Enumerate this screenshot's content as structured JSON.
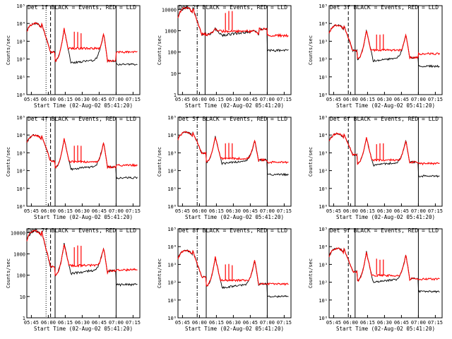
{
  "chart_data": [
    {
      "type": "line",
      "title": "Det 1f BLACK = Events, RED = LLD",
      "xlabel": "Start Time (02-Aug-02 05:41:20)",
      "ylabel": "Counts/sec",
      "x_ticks": [
        "05:45",
        "06:00",
        "06:15",
        "06:30",
        "06:45",
        "07:00",
        "07:15"
      ],
      "y_ticks": [
        "10⁰",
        "10¹",
        "10²",
        "10³",
        "10⁴",
        "10⁵"
      ],
      "ylog": true,
      "ylim": [
        1,
        100000
      ],
      "series": [
        {
          "name": "Events",
          "color": "#000000"
        },
        {
          "name": "LLD",
          "color": "#ff0000"
        }
      ],
      "peak_level": 10000,
      "plateau": [
        250,
        80,
        5000,
        60,
        3000,
        40
      ],
      "llds": 250,
      "markers": [
        {
          "x": "05:58",
          "style": "dotted"
        },
        {
          "x": "06:02",
          "style": "dashed"
        },
        {
          "x": "06:06",
          "style": "solid"
        },
        {
          "x": "07:00",
          "style": "solid"
        }
      ]
    },
    {
      "type": "line",
      "title": "Det 2f BLACK = Events, RED = LLD",
      "xlabel": "Start Time (02-Aug-02 05:41:20)",
      "ylabel": "Counts/sec",
      "x_ticks": [
        "05:45",
        "06:00",
        "06:15",
        "06:30",
        "06:45",
        "07:00",
        "07:15"
      ],
      "y_ticks": [
        "1",
        "10",
        "100",
        "1000",
        "10000"
      ],
      "ylog": true,
      "ylim": [
        1,
        15000
      ],
      "series": [
        {
          "name": "Events",
          "color": "#000000"
        },
        {
          "name": "LLD",
          "color": "#ff0000"
        }
      ],
      "peak_level": 12000,
      "plateau": [
        700,
        650,
        1200,
        600,
        1000,
        600
      ],
      "llds": 600,
      "markers": [
        {
          "x": "05:58",
          "style": "dashdot"
        },
        {
          "x": "06:05",
          "style": "solid"
        },
        {
          "x": "07:00",
          "style": "solid"
        }
      ]
    },
    {
      "type": "line",
      "title": "Det 3f BLACK = Events, RED = LLD",
      "xlabel": "Start Time (02-Aug-02 05:41:20)",
      "ylabel": "Counts/sec",
      "x_ticks": [
        "05:45",
        "06:00",
        "06:15",
        "06:30",
        "06:45",
        "07:00",
        "07:15"
      ],
      "y_ticks": [
        "10⁰",
        "10¹",
        "10²",
        "10³",
        "10⁴",
        "10⁵"
      ],
      "ylog": true,
      "ylim": [
        1,
        100000
      ],
      "series": [
        {
          "name": "Events",
          "color": "#000000"
        },
        {
          "name": "LLD",
          "color": "#ff0000"
        }
      ],
      "peak_level": 8000,
      "plateau": [
        300,
        100,
        4000,
        80,
        2500,
        60
      ],
      "llds": 200,
      "markers": [
        {
          "x": "05:58",
          "style": "dashed"
        },
        {
          "x": "06:04",
          "style": "solid"
        },
        {
          "x": "07:00",
          "style": "solid"
        }
      ]
    },
    {
      "type": "line",
      "title": "Det 4f BLACK = Events, RED = LLD",
      "xlabel": "Start Time (02-Aug-02 05:41:20)",
      "ylabel": "Counts/sec",
      "x_ticks": [
        "05:45",
        "06:00",
        "06:15",
        "06:30",
        "06:45",
        "07:00",
        "07:15"
      ],
      "y_ticks": [
        "10⁰",
        "10¹",
        "10²",
        "10³",
        "10⁴",
        "10⁵"
      ],
      "ylog": true,
      "ylim": [
        1,
        100000
      ],
      "series": [
        {
          "name": "Events",
          "color": "#000000"
        },
        {
          "name": "LLD",
          "color": "#ff0000"
        }
      ],
      "peak_level": 10000,
      "plateau": [
        350,
        150,
        6000,
        120,
        4000,
        80
      ],
      "llds": 200,
      "markers": [
        {
          "x": "05:58",
          "style": "dotted"
        },
        {
          "x": "06:02",
          "style": "dashed"
        },
        {
          "x": "06:06",
          "style": "solid"
        },
        {
          "x": "07:00",
          "style": "solid"
        }
      ]
    },
    {
      "type": "line",
      "title": "Det 5f BLACK = Events, RED = LLD",
      "xlabel": "Start Time (02-Aug-02 05:41:20)",
      "ylabel": "Counts/sec",
      "x_ticks": [
        "05:45",
        "06:00",
        "06:15",
        "06:30",
        "06:45",
        "07:00",
        "07:15"
      ],
      "y_ticks": [
        "10⁰",
        "10¹",
        "10²",
        "10³",
        "10⁴",
        "10⁵"
      ],
      "ylog": true,
      "ylim": [
        1,
        100000
      ],
      "series": [
        {
          "name": "Events",
          "color": "#000000"
        },
        {
          "name": "LLD",
          "color": "#ff0000"
        }
      ],
      "peak_level": 15000,
      "plateau": [
        1000,
        300,
        8000,
        250,
        5000,
        200
      ],
      "llds": 300,
      "markers": [
        {
          "x": "05:58",
          "style": "dashdot"
        },
        {
          "x": "06:06",
          "style": "solid"
        },
        {
          "x": "07:00",
          "style": "solid"
        }
      ]
    },
    {
      "type": "line",
      "title": "Det 6f BLACK = Events, RED = LLD",
      "xlabel": "Start Time (02-Aug-02 05:41:20)",
      "ylabel": "Counts/sec",
      "x_ticks": [
        "05:45",
        "06:00",
        "06:15",
        "06:30",
        "06:45",
        "07:00",
        "07:15"
      ],
      "y_ticks": [
        "10⁰",
        "10¹",
        "10²",
        "10³",
        "10⁴",
        "10⁵"
      ],
      "ylog": true,
      "ylim": [
        1,
        100000
      ],
      "series": [
        {
          "name": "Events",
          "color": "#000000"
        },
        {
          "name": "LLD",
          "color": "#ff0000"
        }
      ],
      "peak_level": 12000,
      "plateau": [
        800,
        250,
        7000,
        200,
        5000,
        150
      ],
      "llds": 250,
      "markers": [
        {
          "x": "05:58",
          "style": "dashed"
        },
        {
          "x": "06:04",
          "style": "solid"
        },
        {
          "x": "07:00",
          "style": "solid"
        }
      ]
    },
    {
      "type": "line",
      "title": "Det 7f BLACK = Events, RED = LLD",
      "xlabel": "Start Time (02-Aug-02 05:41:20)",
      "ylabel": "Counts/sec",
      "x_ticks": [
        "05:45",
        "06:00",
        "06:15",
        "06:30",
        "06:45",
        "07:00",
        "07:15"
      ],
      "y_ticks": [
        "1",
        "10",
        "100",
        "1000",
        "10000"
      ],
      "ylog": true,
      "ylim": [
        1,
        15000
      ],
      "series": [
        {
          "name": "Events",
          "color": "#000000"
        },
        {
          "name": "LLD",
          "color": "#ff0000"
        }
      ],
      "peak_level": 12000,
      "plateau": [
        250,
        100,
        3000,
        120,
        2000,
        80
      ],
      "llds": 180,
      "markers": [
        {
          "x": "05:58",
          "style": "dotted"
        },
        {
          "x": "06:02",
          "style": "dashed"
        },
        {
          "x": "06:06",
          "style": "solid"
        },
        {
          "x": "07:00",
          "style": "solid"
        }
      ]
    },
    {
      "type": "line",
      "title": "Det 8f BLACK = Events, RED = LLD",
      "xlabel": "Start Time (02-Aug-02 05:41:20)",
      "ylabel": "Counts/sec",
      "x_ticks": [
        "05:45",
        "06:00",
        "06:15",
        "06:30",
        "06:45",
        "07:00",
        "07:15"
      ],
      "y_ticks": [
        "10⁰",
        "10¹",
        "10²",
        "10³",
        "10⁴",
        "10⁵"
      ],
      "ylog": true,
      "ylim": [
        1,
        100000
      ],
      "series": [
        {
          "name": "Events",
          "color": "#000000"
        },
        {
          "name": "LLD",
          "color": "#ff0000"
        }
      ],
      "peak_level": 6000,
      "plateau": [
        200,
        60,
        2500,
        50,
        1800,
        40
      ],
      "llds": 80,
      "markers": [
        {
          "x": "05:58",
          "style": "dashdot"
        },
        {
          "x": "06:06",
          "style": "solid"
        },
        {
          "x": "07:00",
          "style": "solid"
        }
      ]
    },
    {
      "type": "line",
      "title": "Det 9f BLACK = Events, RED = LLD",
      "xlabel": "Start Time (02-Aug-02 05:41:20)",
      "ylabel": "Counts/sec",
      "x_ticks": [
        "05:45",
        "06:00",
        "06:15",
        "06:30",
        "06:45",
        "07:00",
        "07:15"
      ],
      "y_ticks": [
        "10⁰",
        "10¹",
        "10²",
        "10³",
        "10⁴",
        "10⁵"
      ],
      "ylog": true,
      "ylim": [
        1,
        100000
      ],
      "series": [
        {
          "name": "Events",
          "color": "#000000"
        },
        {
          "name": "LLD",
          "color": "#ff0000"
        }
      ],
      "peak_level": 8000,
      "plateau": [
        400,
        120,
        5000,
        100,
        3500,
        80
      ],
      "llds": 150,
      "markers": [
        {
          "x": "05:58",
          "style": "dashed"
        },
        {
          "x": "06:04",
          "style": "solid"
        },
        {
          "x": "07:00",
          "style": "solid"
        }
      ]
    }
  ]
}
